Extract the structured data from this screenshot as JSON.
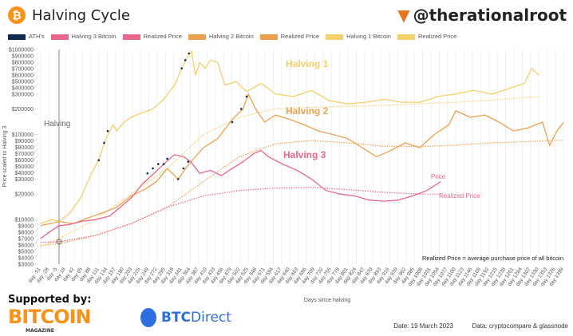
{
  "header": {
    "logo": "₿",
    "title": "Halving Cycle",
    "handle": "@therationalroot",
    "handle_icon": "carrot-icon"
  },
  "footer": {
    "supported_by": "Supported by:",
    "sponsor1": "BITCOIN",
    "sponsor1_sub": "MAGAZINE",
    "sponsor2_a": "BTC",
    "sponsor2_b": "Direct",
    "date": "Date: 19 March 2023",
    "source": "Data: cryptocompare & glassnode"
  },
  "chart_data": {
    "type": "line",
    "title": "Halving Cycle",
    "xlabel": "Days since halving",
    "ylabel": "Price scaled to Halving 3",
    "yscale": "log",
    "ylim": [
      3000,
      1000000
    ],
    "xlim": [
      -51,
      1399
    ],
    "grid": "vertical",
    "legend": [
      {
        "name": "ATH's",
        "color": "#0f2b4f"
      },
      {
        "name": "Halving 3 Bitcoin",
        "color": "#e8678a"
      },
      {
        "name": "Realized Price",
        "color": "#e8678a"
      },
      {
        "name": "Halving 2 Bitcoin",
        "color": "#eca14f"
      },
      {
        "name": "Realized Price",
        "color": "#eca14f"
      },
      {
        "name": "Halving 1 Bitcoin",
        "color": "#f4cf6a"
      },
      {
        "name": "Realized Price",
        "color": "#f4cf6a"
      }
    ],
    "legend_position": "top",
    "yticks": [
      "$1000000",
      "$900000",
      "$800000",
      "$700000",
      "$600000",
      "$500000",
      "$400000",
      "$300000",
      "$200000",
      "$100000",
      "$90000",
      "$80000",
      "$70000",
      "$60000",
      "$50000",
      "$40000",
      "$30000",
      "$20000",
      "$10000",
      "$9000",
      "$8000",
      "$7000",
      "$6000",
      "$5000",
      "$4000",
      "$3000"
    ],
    "ytick_values": [
      1000000,
      900000,
      800000,
      700000,
      600000,
      500000,
      400000,
      300000,
      200000,
      100000,
      90000,
      80000,
      70000,
      60000,
      50000,
      40000,
      30000,
      20000,
      10000,
      9000,
      8000,
      7000,
      6000,
      5000,
      4000,
      3000
    ],
    "xticks": [
      "day -51",
      "day -28",
      "day -5",
      "day 18",
      "day 42",
      "day 65",
      "day 88",
      "day 111",
      "day 134",
      "day 157",
      "day 180",
      "day 203",
      "day 226",
      "day 249",
      "day 272",
      "day 295",
      "day 318",
      "day 341",
      "day 364",
      "day 387",
      "day 410",
      "day 433",
      "day 456",
      "day 479",
      "day 502",
      "day 525",
      "day 548",
      "day 571",
      "day 594",
      "day 617",
      "day 640",
      "day 663",
      "day 686",
      "day 709",
      "day 732",
      "day 755",
      "day 778",
      "day 801",
      "day 824",
      "day 847",
      "day 870",
      "day 893",
      "day 916",
      "day 939",
      "day 962",
      "day 985",
      "day 1008",
      "day 1031",
      "day 1054",
      "day 1077",
      "day 1100",
      "day 1123",
      "day 1146",
      "day 1169",
      "day 1192",
      "day 1215",
      "day 1238",
      "day 1261",
      "day 1284",
      "day 1307",
      "day 1330",
      "day 1353",
      "day 1376",
      "day 1399"
    ],
    "xtick_values": [
      -51,
      -28,
      -5,
      18,
      42,
      65,
      88,
      111,
      134,
      157,
      180,
      203,
      226,
      249,
      272,
      295,
      318,
      341,
      364,
      387,
      410,
      433,
      456,
      479,
      502,
      525,
      548,
      571,
      594,
      617,
      640,
      663,
      686,
      709,
      732,
      755,
      778,
      801,
      824,
      847,
      870,
      893,
      916,
      939,
      962,
      985,
      1008,
      1031,
      1054,
      1077,
      1100,
      1123,
      1146,
      1169,
      1192,
      1215,
      1238,
      1261,
      1284,
      1307,
      1330,
      1353,
      1376,
      1399
    ],
    "annotations": {
      "halving": "Halving",
      "h1": "Halving 1",
      "h2": "Halving 2",
      "h3": "Halving 3",
      "price": "Price",
      "realized": "Realized Price",
      "note": "Realized Price = average purchase price of all bitcoin"
    },
    "series": [
      {
        "name": "Halving 1 Bitcoin",
        "color": "#f4cf6a",
        "style": "solid",
        "points": [
          [
            -51,
            9000
          ],
          [
            -20,
            10000
          ],
          [
            0,
            9500
          ],
          [
            30,
            12000
          ],
          [
            60,
            18000
          ],
          [
            90,
            35000
          ],
          [
            110,
            50000
          ],
          [
            130,
            90000
          ],
          [
            150,
            130000
          ],
          [
            160,
            110000
          ],
          [
            180,
            140000
          ],
          [
            200,
            160000
          ],
          [
            230,
            180000
          ],
          [
            260,
            200000
          ],
          [
            290,
            260000
          ],
          [
            320,
            380000
          ],
          [
            340,
            600000
          ],
          [
            355,
            800000
          ],
          [
            367,
            950000
          ],
          [
            378,
            500000
          ],
          [
            390,
            700000
          ],
          [
            405,
            600000
          ],
          [
            420,
            750000
          ],
          [
            440,
            700000
          ],
          [
            460,
            380000
          ],
          [
            490,
            420000
          ],
          [
            520,
            320000
          ],
          [
            560,
            400000
          ],
          [
            600,
            300000
          ],
          [
            650,
            280000
          ],
          [
            700,
            330000
          ],
          [
            750,
            250000
          ],
          [
            800,
            230000
          ],
          [
            850,
            240000
          ],
          [
            900,
            260000
          ],
          [
            950,
            240000
          ],
          [
            1000,
            240000
          ],
          [
            1050,
            280000
          ],
          [
            1100,
            300000
          ],
          [
            1150,
            330000
          ],
          [
            1200,
            300000
          ],
          [
            1250,
            350000
          ],
          [
            1290,
            400000
          ],
          [
            1310,
            600000
          ],
          [
            1330,
            500000
          ]
        ]
      },
      {
        "name": "Realized Price",
        "color": "#f4cf6a",
        "style": "dotted",
        "points": [
          [
            -51,
            4800
          ],
          [
            0,
            6000
          ],
          [
            100,
            10000
          ],
          [
            200,
            20000
          ],
          [
            300,
            40000
          ],
          [
            400,
            100000
          ],
          [
            500,
            160000
          ],
          [
            600,
            200000
          ],
          [
            700,
            210000
          ],
          [
            800,
            215000
          ],
          [
            900,
            220000
          ],
          [
            1000,
            230000
          ],
          [
            1100,
            240000
          ],
          [
            1200,
            255000
          ],
          [
            1330,
            280000
          ]
        ]
      },
      {
        "name": "Halving 2 Bitcoin",
        "color": "#eca14f",
        "style": "solid",
        "points": [
          [
            -51,
            8500
          ],
          [
            0,
            9500
          ],
          [
            40,
            9000
          ],
          [
            80,
            10500
          ],
          [
            120,
            12000
          ],
          [
            160,
            14000
          ],
          [
            200,
            19000
          ],
          [
            240,
            23000
          ],
          [
            270,
            28000
          ],
          [
            300,
            40000
          ],
          [
            330,
            30000
          ],
          [
            360,
            45000
          ],
          [
            400,
            70000
          ],
          [
            440,
            90000
          ],
          [
            480,
            150000
          ],
          [
            510,
            200000
          ],
          [
            525,
            300000
          ],
          [
            545,
            200000
          ],
          [
            570,
            140000
          ],
          [
            600,
            170000
          ],
          [
            640,
            150000
          ],
          [
            680,
            130000
          ],
          [
            720,
            110000
          ],
          [
            760,
            100000
          ],
          [
            800,
            90000
          ],
          [
            840,
            70000
          ],
          [
            880,
            55000
          ],
          [
            920,
            65000
          ],
          [
            960,
            80000
          ],
          [
            1000,
            70000
          ],
          [
            1040,
            100000
          ],
          [
            1080,
            130000
          ],
          [
            1100,
            190000
          ],
          [
            1140,
            160000
          ],
          [
            1180,
            170000
          ],
          [
            1220,
            140000
          ],
          [
            1260,
            110000
          ],
          [
            1300,
            120000
          ],
          [
            1340,
            140000
          ],
          [
            1360,
            75000
          ],
          [
            1380,
            110000
          ],
          [
            1399,
            140000
          ]
        ]
      },
      {
        "name": "Realized Price",
        "color": "#eca14f",
        "style": "dotted",
        "points": [
          [
            -51,
            5000
          ],
          [
            0,
            5200
          ],
          [
            100,
            6500
          ],
          [
            200,
            9000
          ],
          [
            300,
            14000
          ],
          [
            400,
            28000
          ],
          [
            500,
            55000
          ],
          [
            600,
            78000
          ],
          [
            700,
            85000
          ],
          [
            800,
            80000
          ],
          [
            900,
            73000
          ],
          [
            1000,
            72000
          ],
          [
            1100,
            75000
          ],
          [
            1200,
            80000
          ],
          [
            1300,
            83000
          ],
          [
            1399,
            86000
          ]
        ]
      },
      {
        "name": "Halving 3 Bitcoin",
        "color": "#e8678a",
        "style": "solid",
        "points": [
          [
            -51,
            6000
          ],
          [
            -30,
            7000
          ],
          [
            0,
            8500
          ],
          [
            30,
            8800
          ],
          [
            60,
            9500
          ],
          [
            100,
            10000
          ],
          [
            140,
            11000
          ],
          [
            170,
            14000
          ],
          [
            200,
            18000
          ],
          [
            230,
            26000
          ],
          [
            260,
            34000
          ],
          [
            290,
            45000
          ],
          [
            320,
            58000
          ],
          [
            345,
            55000
          ],
          [
            365,
            48000
          ],
          [
            390,
            35000
          ],
          [
            420,
            38000
          ],
          [
            450,
            33000
          ],
          [
            480,
            40000
          ],
          [
            510,
            48000
          ],
          [
            540,
            60000
          ],
          [
            560,
            65000
          ],
          [
            580,
            55000
          ],
          [
            620,
            45000
          ],
          [
            660,
            38000
          ],
          [
            700,
            30000
          ],
          [
            740,
            22000
          ],
          [
            780,
            20000
          ],
          [
            820,
            19000
          ],
          [
            860,
            17000
          ],
          [
            900,
            16500
          ],
          [
            940,
            17000
          ],
          [
            980,
            19000
          ],
          [
            1020,
            22000
          ],
          [
            1040,
            25000
          ],
          [
            1058,
            28000
          ]
        ]
      },
      {
        "name": "Realized Price",
        "color": "#e8678a",
        "style": "dotted",
        "points": [
          [
            -51,
            5400
          ],
          [
            0,
            5500
          ],
          [
            100,
            6500
          ],
          [
            200,
            9000
          ],
          [
            300,
            14000
          ],
          [
            400,
            19000
          ],
          [
            500,
            22000
          ],
          [
            600,
            23500
          ],
          [
            700,
            24000
          ],
          [
            800,
            22500
          ],
          [
            900,
            21000
          ],
          [
            1000,
            20000
          ],
          [
            1058,
            20000
          ]
        ]
      },
      {
        "name": "ATH's",
        "color": "#0f2b4f",
        "style": "dots",
        "points": [
          [
            110,
            50000
          ],
          [
            125,
            80000
          ],
          [
            135,
            110000
          ],
          [
            245,
            35000
          ],
          [
            260,
            40000
          ],
          [
            275,
            45000
          ],
          [
            340,
            600000
          ],
          [
            350,
            750000
          ],
          [
            360,
            900000
          ],
          [
            290,
            45000
          ],
          [
            300,
            52000
          ],
          [
            330,
            30000
          ],
          [
            345,
            40000
          ],
          [
            358,
            48000
          ],
          [
            480,
            140000
          ],
          [
            505,
            200000
          ],
          [
            520,
            280000
          ]
        ]
      }
    ]
  }
}
